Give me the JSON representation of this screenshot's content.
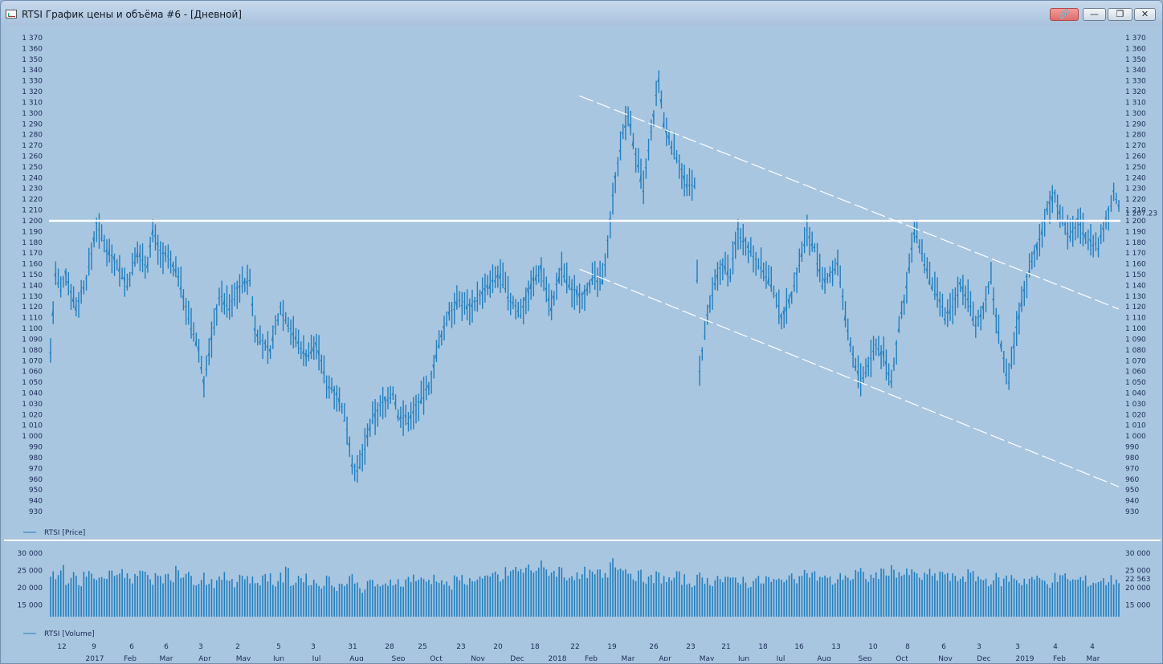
{
  "window": {
    "title": "RTSI График цены и объёма #6 - [Дневной]",
    "buttons": {
      "link": "🔗",
      "minimize": "—",
      "maximize": "❐",
      "close": "✕"
    }
  },
  "colors": {
    "background": "#a9c6e0",
    "series": "#1f7fc0",
    "level_line": "#ffffff",
    "channel": "#ffffff",
    "axis_text": "#1a2a55"
  },
  "legend": {
    "price": "RTSI [Price]",
    "volume": "RTSI [Volume]"
  },
  "price_axis": {
    "ticks": [
      "1 370",
      "1 360",
      "1 350",
      "1 340",
      "1 330",
      "1 320",
      "1 310",
      "1 300",
      "1 290",
      "1 280",
      "1 270",
      "1 260",
      "1 250",
      "1 240",
      "1 230",
      "1 220",
      "1 210",
      "1 200",
      "1 190",
      "1 180",
      "1 170",
      "1 160",
      "1 150",
      "1 140",
      "1 130",
      "1 120",
      "1 110",
      "1 100",
      "1 090",
      "1 080",
      "1 070",
      "1 060",
      "1 050",
      "1 040",
      "1 030",
      "1 020",
      "1 010",
      "1 000",
      "990",
      "980",
      "970",
      "960",
      "950",
      "940",
      "930"
    ],
    "current_value_label": "1 207.23"
  },
  "volume_axis": {
    "ticks": [
      "30 000",
      "25 000",
      "20 000",
      "15 000"
    ],
    "current_value_label": "22 563"
  },
  "chart_data": {
    "type": "line",
    "price": {
      "name": "RTSI [Price]",
      "style": "ohlc-bars",
      "ylim": [
        925,
        1372
      ],
      "points": [
        [
          0,
          1080
        ],
        [
          2,
          1150
        ],
        [
          4,
          1135
        ],
        [
          6,
          1150
        ],
        [
          10,
          1120
        ],
        [
          14,
          1145
        ],
        [
          18,
          1195
        ],
        [
          22,
          1175
        ],
        [
          26,
          1160
        ],
        [
          30,
          1140
        ],
        [
          34,
          1170
        ],
        [
          38,
          1160
        ],
        [
          40,
          1190
        ],
        [
          43,
          1170
        ],
        [
          46,
          1165
        ],
        [
          50,
          1150
        ],
        [
          54,
          1110
        ],
        [
          58,
          1080
        ],
        [
          60,
          1050
        ],
        [
          63,
          1090
        ],
        [
          66,
          1130
        ],
        [
          70,
          1120
        ],
        [
          74,
          1140
        ],
        [
          78,
          1145
        ],
        [
          80,
          1100
        ],
        [
          83,
          1085
        ],
        [
          86,
          1080
        ],
        [
          90,
          1120
        ],
        [
          93,
          1105
        ],
        [
          96,
          1090
        ],
        [
          100,
          1075
        ],
        [
          104,
          1085
        ],
        [
          108,
          1050
        ],
        [
          112,
          1040
        ],
        [
          116,
          1010
        ],
        [
          118,
          975
        ],
        [
          120,
          965
        ],
        [
          123,
          990
        ],
        [
          126,
          1015
        ],
        [
          130,
          1030
        ],
        [
          134,
          1040
        ],
        [
          136,
          1020
        ],
        [
          140,
          1015
        ],
        [
          144,
          1030
        ],
        [
          148,
          1045
        ],
        [
          152,
          1085
        ],
        [
          156,
          1115
        ],
        [
          160,
          1125
        ],
        [
          164,
          1120
        ],
        [
          168,
          1130
        ],
        [
          172,
          1140
        ],
        [
          176,
          1150
        ],
        [
          180,
          1125
        ],
        [
          184,
          1115
        ],
        [
          188,
          1140
        ],
        [
          192,
          1155
        ],
        [
          196,
          1120
        ],
        [
          200,
          1155
        ],
        [
          204,
          1135
        ],
        [
          208,
          1130
        ],
        [
          212,
          1145
        ],
        [
          216,
          1145
        ],
        [
          218,
          1180
        ],
        [
          221,
          1240
        ],
        [
          224,
          1280
        ],
        [
          226,
          1300
        ],
        [
          229,
          1260
        ],
        [
          232,
          1230
        ],
        [
          235,
          1280
        ],
        [
          238,
          1330
        ],
        [
          240,
          1290
        ],
        [
          243,
          1270
        ],
        [
          246,
          1255
        ],
        [
          249,
          1230
        ],
        [
          252,
          1235
        ],
        [
          254,
          1060
        ],
        [
          257,
          1110
        ],
        [
          260,
          1140
        ],
        [
          263,
          1160
        ],
        [
          266,
          1150
        ],
        [
          269,
          1190
        ],
        [
          272,
          1180
        ],
        [
          276,
          1165
        ],
        [
          280,
          1150
        ],
        [
          283,
          1135
        ],
        [
          286,
          1110
        ],
        [
          290,
          1130
        ],
        [
          293,
          1160
        ],
        [
          296,
          1190
        ],
        [
          299,
          1175
        ],
        [
          302,
          1140
        ],
        [
          305,
          1150
        ],
        [
          308,
          1160
        ],
        [
          311,
          1110
        ],
        [
          314,
          1075
        ],
        [
          317,
          1050
        ],
        [
          320,
          1065
        ],
        [
          323,
          1085
        ],
        [
          326,
          1075
        ],
        [
          329,
          1050
        ],
        [
          332,
          1100
        ],
        [
          335,
          1140
        ],
        [
          338,
          1190
        ],
        [
          341,
          1170
        ],
        [
          344,
          1145
        ],
        [
          347,
          1130
        ],
        [
          350,
          1110
        ],
        [
          353,
          1120
        ],
        [
          356,
          1140
        ],
        [
          359,
          1130
        ],
        [
          362,
          1100
        ],
        [
          365,
          1120
        ],
        [
          368,
          1145
        ],
        [
          370,
          1110
        ],
        [
          373,
          1070
        ],
        [
          375,
          1050
        ],
        [
          378,
          1100
        ],
        [
          381,
          1135
        ],
        [
          384,
          1165
        ],
        [
          387,
          1180
        ],
        [
          390,
          1210
        ],
        [
          393,
          1225
        ],
        [
          396,
          1200
        ],
        [
          399,
          1185
        ],
        [
          402,
          1200
        ],
        [
          405,
          1185
        ],
        [
          408,
          1180
        ],
        [
          410,
          1175
        ],
        [
          413,
          1200
        ],
        [
          416,
          1225
        ],
        [
          418,
          1215
        ]
      ],
      "level_line": 1200,
      "channel_upper": [
        [
          207,
          1316
        ],
        [
          418,
          1118
        ]
      ],
      "channel_lower": [
        [
          207,
          1155
        ],
        [
          418,
          953
        ]
      ]
    },
    "volume": {
      "name": "RTSI [Volume]",
      "ylim": [
        10000,
        31000
      ],
      "values": [
        24000,
        25000,
        22000,
        23500,
        20500,
        24500,
        23000,
        22000,
        21500,
        24000,
        23000,
        24500,
        22500,
        25000,
        23800,
        22600,
        24200,
        23000,
        22500,
        26500,
        24000,
        23000,
        22400,
        23500,
        22100,
        21500,
        23000,
        22800,
        21900,
        23600,
        22600,
        21800,
        22200,
        23400,
        21200,
        22700,
        24500,
        21800,
        23100,
        22400,
        21600,
        20900,
        22200,
        21400,
        20800,
        21500,
        22800,
        20600,
        20200,
        21600,
        20900,
        19800,
        21500,
        22100,
        21400,
        23000,
        22600,
        21800,
        22300,
        22900,
        21700,
        20500,
        21900,
        22600,
        21800,
        23100,
        22500,
        21900,
        23700,
        22400,
        24400,
        25100,
        24800,
        25600,
        25300,
        26300,
        24900,
        24600,
        25200,
        23400,
        23900,
        22800,
        24400,
        23600,
        24100,
        22900,
        28500,
        26800,
        25200,
        24000,
        23500,
        22900,
        22200,
        23400,
        22800,
        21900,
        23100,
        22400,
        21600,
        22300,
        22900,
        21800,
        23500,
        22100,
        21600,
        22800,
        22100,
        21500,
        22200,
        21800,
        22600,
        21500,
        21900,
        23200,
        22400,
        25100,
        24300,
        23600,
        23000,
        22500,
        21900,
        22800,
        23600,
        22400,
        24100,
        23500,
        22800,
        23900,
        24600,
        25200,
        24500,
        23800,
        24300,
        23500,
        22900,
        23800,
        23100,
        24300,
        22800,
        22600,
        23200,
        23900,
        23100,
        22400,
        22100,
        22700,
        21900,
        22600,
        22900,
        21700,
        22300,
        22800,
        22100,
        21600,
        22800,
        22400,
        23500,
        21800,
        22500,
        21900,
        21400,
        22000,
        21800,
        22200,
        22563
      ]
    },
    "x_axis": {
      "day_labels": [
        "12",
        "9",
        "6",
        "6",
        "3",
        "2",
        "5",
        "3",
        "31",
        "28",
        "25",
        "23",
        "20",
        "18",
        "22",
        "19",
        "26",
        "23",
        "21",
        "18",
        "16",
        "13",
        "10",
        "8",
        "6",
        "3",
        "3",
        "4",
        "4"
      ],
      "month_labels": [
        "2017",
        "Feb",
        "Mar",
        "Apr",
        "May",
        "Jun",
        "Jul",
        "Aug",
        "Sep",
        "Oct",
        "Nov",
        "Dec",
        "2018",
        "Feb",
        "Mar",
        "Apr",
        "May",
        "Jun",
        "Jul",
        "Aug",
        "Sep",
        "Oct",
        "Nov",
        "Dec",
        "2019",
        "Feb",
        "Mar"
      ]
    }
  }
}
